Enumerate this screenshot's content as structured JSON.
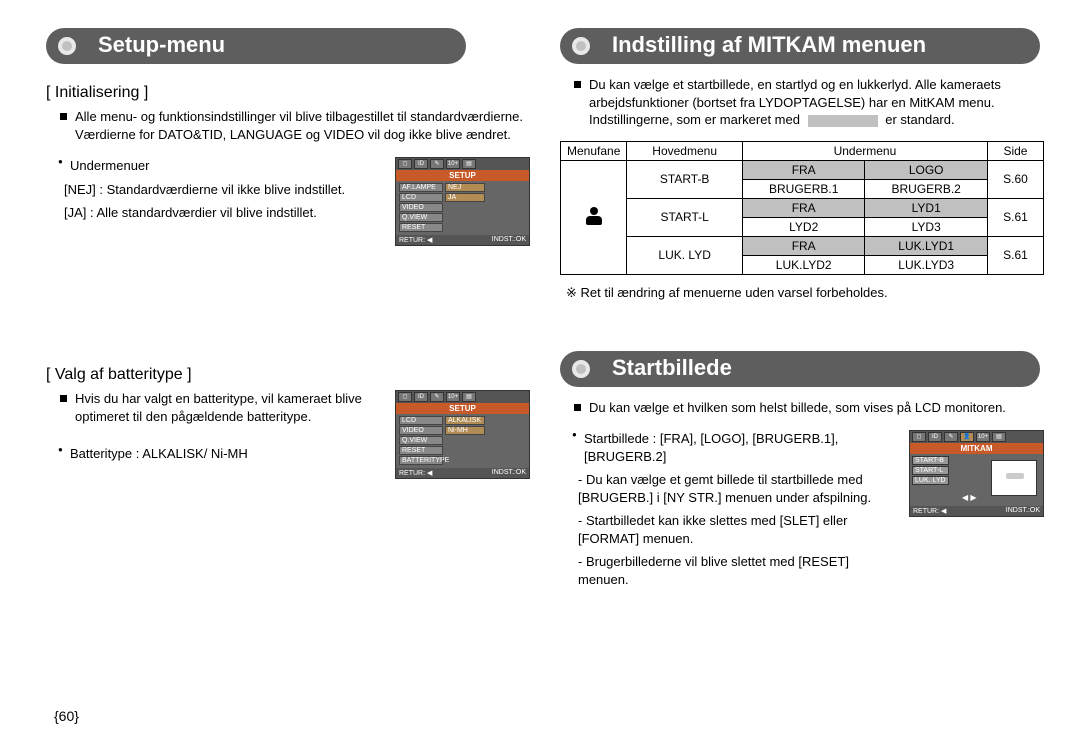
{
  "left": {
    "header": "Setup-menu",
    "init": {
      "title": "[ Initialisering ]",
      "p1": "Alle menu- og funktionsindstillinger vil blive tilbagestillet til standardværdierne. Værdierne for DATO&TID, LANGUAGE og VIDEO vil dog ikke blive ændret.",
      "sub_label": "Undermenuer",
      "nej_line": "[NEJ] : Standardværdierne vil ikke blive indstillet.",
      "ja_line": "[JA]    : Alle standardværdier vil blive indstillet."
    },
    "screenshot1": {
      "title": "SETUP",
      "rows": [
        {
          "lbl": "AF.LAMPE",
          "val": "NEJ"
        },
        {
          "lbl": "LCD",
          "val": "JA"
        },
        {
          "lbl": "VIDEO",
          "val": ""
        },
        {
          "lbl": "Q.VIEW",
          "val": ""
        },
        {
          "lbl": "RESET",
          "val": ""
        }
      ],
      "footer_l": "RETUR: ◀",
      "footer_r": "INDST.:OK"
    },
    "valg": {
      "title": "[ Valg af batteritype ]",
      "p1": "Hvis du har valgt en batteritype, vil kameraet blive optimeret til den pågældende batteritype.",
      "battery_line": "Batteritype : ALKALISK/ Ni-MH"
    },
    "screenshot2": {
      "title": "SETUP",
      "rows": [
        {
          "lbl": "LCD",
          "val": "ALKALISK"
        },
        {
          "lbl": "VIDEO",
          "val": "Ni-MH"
        },
        {
          "lbl": "Q.VIEW",
          "val": ""
        },
        {
          "lbl": "RESET",
          "val": ""
        },
        {
          "lbl": "BATTERITYPE",
          "val": ""
        }
      ],
      "footer_l": "RETUR: ◀",
      "footer_r": "INDST.:OK"
    }
  },
  "right": {
    "header1": "Indstilling af MITKAM menuen",
    "intro1": "Du kan vælge et startbillede, en startlyd og en lukkerlyd. Alle kameraets arbejdsfunktioner (bortset fra LYDOPTAGELSE) har en MitKAM menu. Indstillingerne, som er markeret med",
    "intro1_tail": "er standard.",
    "table": {
      "headers": [
        "Menufane",
        "Hovedmenu",
        "Undermenu",
        "Side"
      ],
      "rows": [
        {
          "main": "START-B",
          "sub1": "FRA",
          "sub2": "LOGO",
          "side": "S.60",
          "shade": true
        },
        {
          "main": "",
          "sub1": "BRUGERB.1",
          "sub2": "BRUGERB.2",
          "side": "",
          "shade": false
        },
        {
          "main": "START-L",
          "sub1": "FRA",
          "sub2": "LYD1",
          "side": "S.61",
          "shade": true
        },
        {
          "main": "",
          "sub1": "LYD2",
          "sub2": "LYD3",
          "side": "",
          "shade": false
        },
        {
          "main": "LUK. LYD",
          "sub1": "FRA",
          "sub2": "LUK.LYD1",
          "side": "S.61",
          "shade": true
        },
        {
          "main": "",
          "sub1": "LUK.LYD2",
          "sub2": "LUK.LYD3",
          "side": "",
          "shade": false
        }
      ]
    },
    "table_note": "※  Ret til ændring af menuerne uden varsel forbeholdes.",
    "header2": "Startbillede",
    "p2": "Du kan vælge et hvilken som helst billede, som vises på LCD monitoren.",
    "list_lead": "Startbillede : [FRA], [LOGO], [BRUGERB.1], [BRUGERB.2]",
    "li1": "- Du kan vælge et gemt billede til startbillede med [BRUGERB.] i [NY STR.] menuen under afspilning.",
    "li2": "- Startbilledet kan ikke slettes med [SLET] eller [FORMAT] menuen.",
    "li3": "- Brugerbillederne vil blive slettet med [RESET] menuen.",
    "screenshot3": {
      "title": "MITKAM",
      "labels": [
        "START-B",
        "START-L",
        "LUK. LYD"
      ],
      "footer_l": "RETUR: ◀",
      "footer_r": "INDST.:OK"
    }
  },
  "page_number": "{60}"
}
